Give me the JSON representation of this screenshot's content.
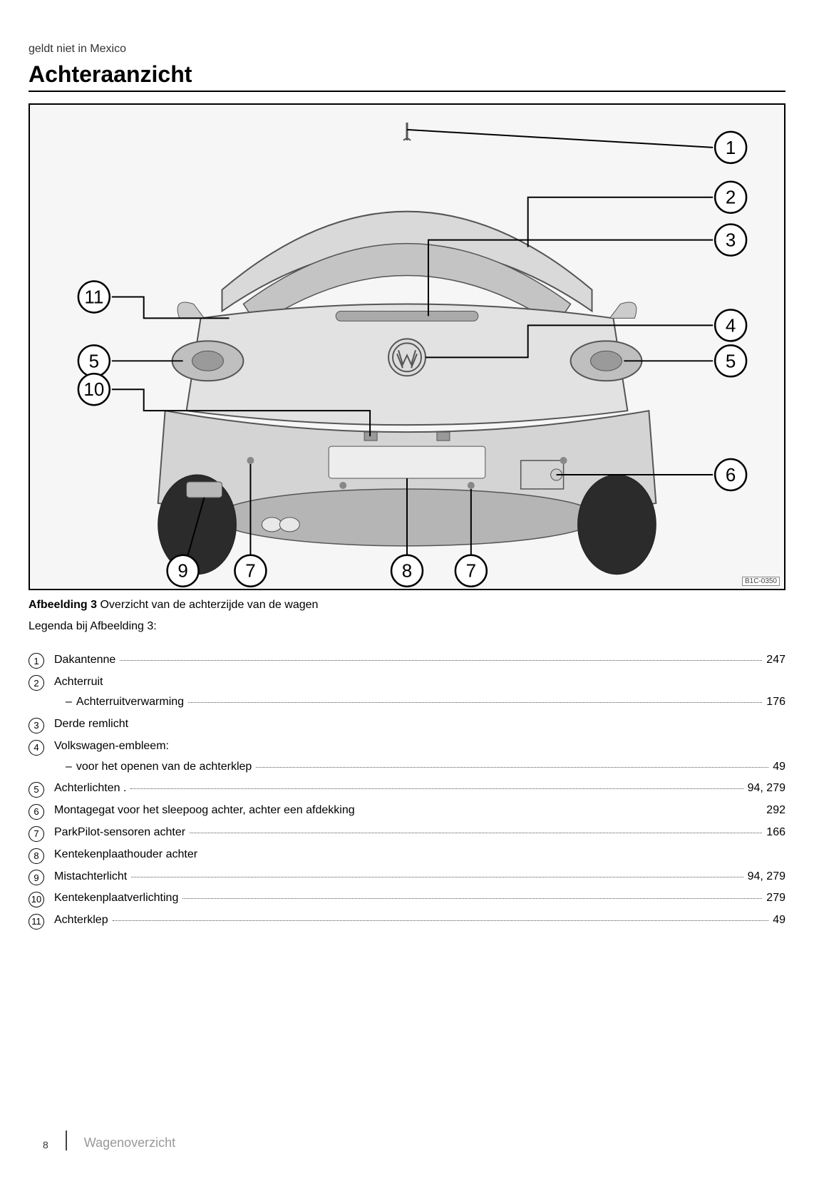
{
  "top_note": "geldt niet in Mexico",
  "title": "Achteraanzicht",
  "figure": {
    "code": "B1C-0350",
    "callouts": [
      "1",
      "2",
      "3",
      "4",
      "5",
      "5",
      "6",
      "7",
      "7",
      "8",
      "9",
      "10",
      "11"
    ]
  },
  "caption_label": "Afbeelding 3",
  "caption_text": "Overzicht van de achterzijde van de wagen",
  "legend_intro": "Legenda bij Afbeelding 3:",
  "legend": [
    {
      "num": "1",
      "label": "Dakantenne",
      "page": "247",
      "dots": true
    },
    {
      "num": "2",
      "label": "Achterruit",
      "sub": [
        {
          "label": "Achterruitverwarming",
          "page": "176",
          "dots": true
        }
      ]
    },
    {
      "num": "3",
      "label": "Derde remlicht"
    },
    {
      "num": "4",
      "label": "Volkswagen-embleem:",
      "sub": [
        {
          "label": "voor het openen van de achterklep",
          "page": "49",
          "dots": true
        }
      ]
    },
    {
      "num": "5",
      "label": "Achterlichten .",
      "page": "94, 279",
      "dots": true
    },
    {
      "num": "6",
      "label": "Montagegat voor het sleepoog achter, achter een afdekking",
      "page": "292",
      "dots": false
    },
    {
      "num": "7",
      "label": "ParkPilot-sensoren achter",
      "page": "166",
      "dots": true
    },
    {
      "num": "8",
      "label": "Kentekenplaathouder achter"
    },
    {
      "num": "9",
      "label": "Mistachterlicht",
      "page": "94, 279",
      "dots": true
    },
    {
      "num": "10",
      "label": "Kentekenplaatverlichting",
      "page": "279",
      "dots": true
    },
    {
      "num": "11",
      "label": "Achterklep",
      "page": "49",
      "dots": true
    }
  ],
  "footer": {
    "page": "8",
    "section": "Wagenoverzicht"
  }
}
